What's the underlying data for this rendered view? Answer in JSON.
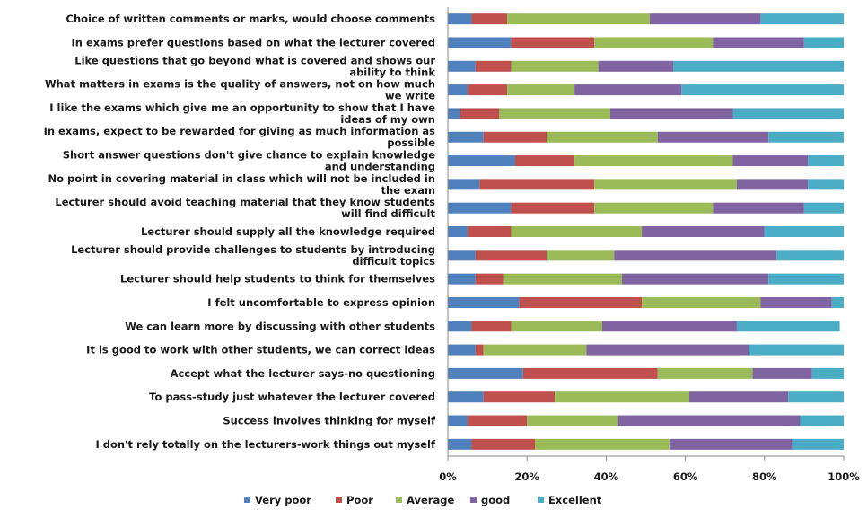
{
  "chart_data": {
    "type": "bar",
    "orientation": "horizontal",
    "stacked": "percent",
    "xlim": [
      0,
      100
    ],
    "x_ticks": [
      "0%",
      "20%",
      "40%",
      "60%",
      "80%",
      "100%"
    ],
    "legend_position": "bottom",
    "grid": false,
    "categories": [
      "Choice of written comments or marks, would choose comments",
      "In exams prefer questions based on what the lecturer covered",
      "Like questions that go beyond what is covered and shows our ability to think",
      "What matters in exams is the quality of answers, not on how much we write",
      "I like the exams which give me an opportunity to show that I have ideas of my own",
      "In exams, expect to be rewarded for giving as much information as possible",
      "Short answer questions don't give chance to explain knowledge and understanding",
      "No point in covering material in class which will not be included in the exam",
      "Lecturer should avoid teaching material that they know students will find difficult",
      "Lecturer should supply all the knowledge required",
      "Lecturer should provide challenges to students by introducing difficult topics",
      "Lecturer should help students to think for themselves",
      "I felt uncomfortable to express opinion",
      "We can learn more by discussing with other students",
      "It is good to work with other students, we can correct ideas",
      "Accept what the lecturer says-no questioning",
      "To pass-study just whatever the lecturer covered",
      "Success involves thinking for myself",
      "I don't rely totally on the lecturers-work things out myself"
    ],
    "category_lines": [
      [
        "Choice of written comments or marks, would choose comments"
      ],
      [
        "In exams prefer questions based on what the lecturer covered"
      ],
      [
        "Like questions that go beyond what is covered and shows our",
        "ability to think"
      ],
      [
        "What matters in exams is the quality of answers, not on how much",
        "we write"
      ],
      [
        "I like the exams which give me an opportunity to show that I have",
        "ideas of my own"
      ],
      [
        "In exams, expect to be rewarded for giving as much information as",
        "possible"
      ],
      [
        "Short answer questions don't give chance to explain knowledge",
        "and understanding"
      ],
      [
        "No point in covering material in class which will not be included in",
        "the exam"
      ],
      [
        "Lecturer should avoid teaching material that they know students",
        "will find difficult"
      ],
      [
        "Lecturer should supply all the knowledge required"
      ],
      [
        "Lecturer should provide challenges to students by introducing",
        "difficult topics"
      ],
      [
        "Lecturer should help students to think for themselves"
      ],
      [
        "I felt uncomfortable to express opinion"
      ],
      [
        "We can learn more by discussing with other students"
      ],
      [
        "It is good to work with other students, we can correct ideas"
      ],
      [
        "Accept what the lecturer says-no questioning"
      ],
      [
        "To pass-study just whatever the lecturer covered"
      ],
      [
        "Success involves thinking for myself"
      ],
      [
        "I don't rely totally on the lecturers-work things out myself"
      ]
    ],
    "series": [
      {
        "name": "Very poor",
        "color": "#4F81BD",
        "values": [
          6,
          16,
          7,
          5,
          3,
          9,
          17,
          8,
          16,
          5,
          7,
          7,
          18,
          6,
          7,
          19,
          9,
          5,
          6
        ]
      },
      {
        "name": "Poor",
        "color": "#C0504D",
        "values": [
          9,
          21,
          9,
          10,
          10,
          16,
          15,
          29,
          21,
          11,
          18,
          7,
          31,
          10,
          2,
          34,
          18,
          15,
          16
        ]
      },
      {
        "name": "Average",
        "color": "#9BBB59",
        "values": [
          36,
          30,
          22,
          17,
          28,
          28,
          40,
          36,
          30,
          33,
          17,
          30,
          30,
          23,
          26,
          24,
          34,
          23,
          34
        ]
      },
      {
        "name": "good",
        "color": "#8064A2",
        "values": [
          28,
          23,
          19,
          27,
          31,
          28,
          19,
          18,
          23,
          31,
          41,
          37,
          18,
          34,
          41,
          15,
          25,
          46,
          31
        ]
      },
      {
        "name": "Excellent",
        "color": "#4BACC6",
        "values": [
          21,
          10,
          43,
          41,
          28,
          19,
          9,
          9,
          10,
          20,
          17,
          19,
          3,
          26,
          24,
          8,
          14,
          11,
          13
        ]
      }
    ]
  }
}
